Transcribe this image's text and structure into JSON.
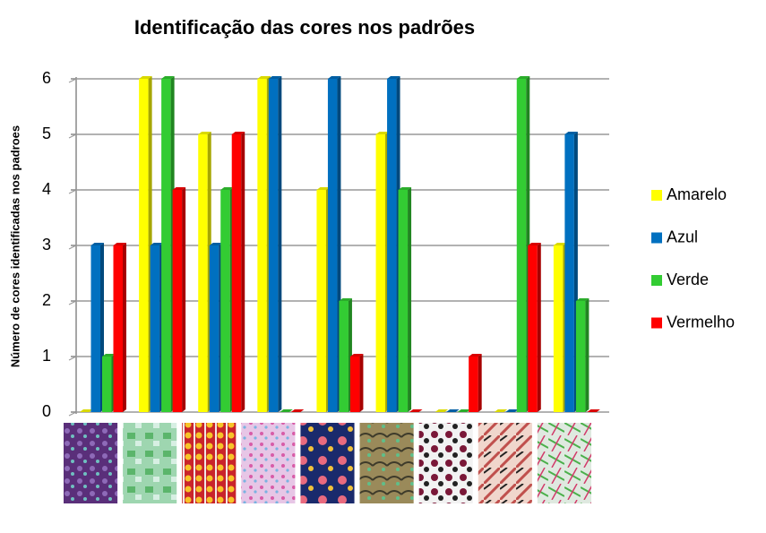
{
  "chart_data": {
    "type": "bar",
    "title": "Identificação das cores nos padrões",
    "y_label": "Número de cores identificadas nos padroes",
    "categories": [
      null,
      null,
      null,
      null,
      null,
      null,
      null,
      null,
      null
    ],
    "series": [
      {
        "name": "Amarelo",
        "color": "#ffff00",
        "values": [
          0,
          6,
          5,
          6,
          4,
          5,
          0,
          0,
          3
        ]
      },
      {
        "name": "Azul",
        "color": "#0070c0",
        "values": [
          3,
          3,
          3,
          6,
          6,
          6,
          0,
          0,
          5
        ]
      },
      {
        "name": "Verde",
        "color": "#33cc33",
        "values": [
          1,
          6,
          4,
          0,
          2,
          4,
          0,
          6,
          2
        ]
      },
      {
        "name": "Vermelho",
        "color": "#ff0000",
        "values": [
          3,
          4,
          5,
          0,
          1,
          0,
          1,
          3,
          0
        ]
      }
    ],
    "ylim": [
      0,
      6
    ],
    "yticks": [
      0,
      1,
      2,
      3,
      4,
      5,
      6
    ],
    "grid": true,
    "legend": "right"
  }
}
